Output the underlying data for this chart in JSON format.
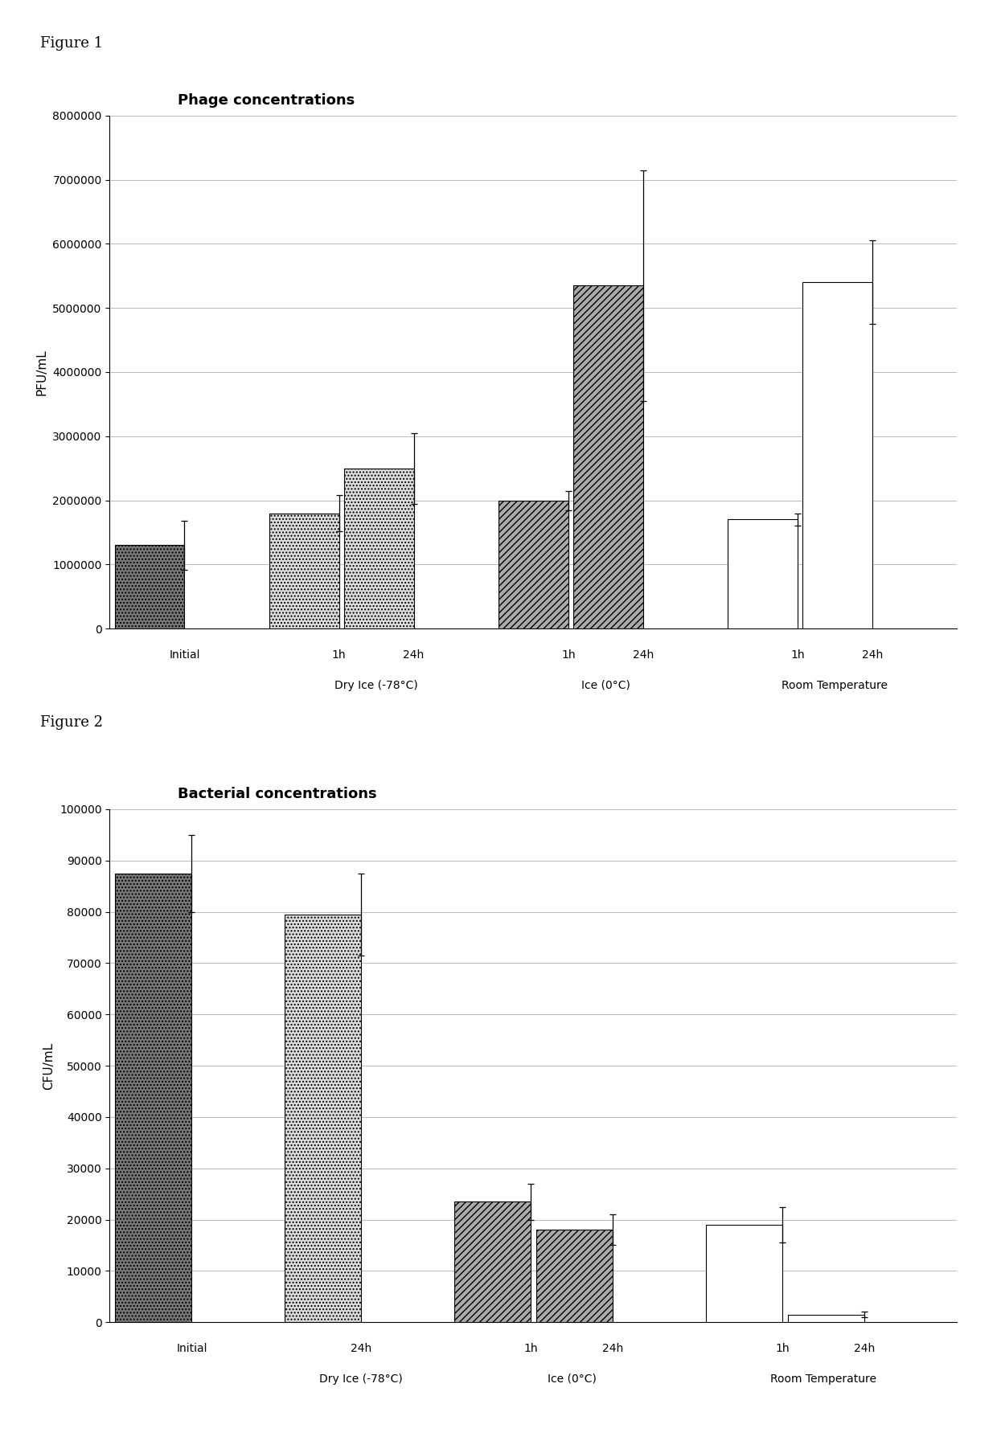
{
  "fig1": {
    "title": "Phage concentrations",
    "ylabel": "PFU/mL",
    "ylim": [
      0,
      8000000
    ],
    "yticks": [
      0,
      1000000,
      2000000,
      3000000,
      4000000,
      5000000,
      6000000,
      7000000,
      8000000
    ],
    "bars": [
      {
        "label": "Initial",
        "group": "Initial",
        "value": 1300000,
        "error": 380000,
        "style": "dark_dot"
      },
      {
        "label": "1h",
        "group": "Dry Ice (-78°C)",
        "value": 1800000,
        "error": 280000,
        "style": "light_dot"
      },
      {
        "label": "24h",
        "group": "Dry Ice (-78°C)",
        "value": 2500000,
        "error": 550000,
        "style": "light_dot"
      },
      {
        "label": "1h",
        "group": "Ice (0°C)",
        "value": 2000000,
        "error": 150000,
        "style": "hatch"
      },
      {
        "label": "24h",
        "group": "Ice (0°C)",
        "value": 5350000,
        "error": 1800000,
        "style": "hatch"
      },
      {
        "label": "1h",
        "group": "Room Temperature",
        "value": 1700000,
        "error": 100000,
        "style": "white"
      },
      {
        "label": "24h",
        "group": "Room Temperature",
        "value": 5400000,
        "error": 650000,
        "style": "white"
      }
    ],
    "group_labels": [
      "Initial",
      "Dry Ice (-78°C)",
      "Ice (0°C)",
      "Room Temperature"
    ]
  },
  "fig2": {
    "title": "Bacterial concentrations",
    "ylabel": "CFU/mL",
    "ylim": [
      0,
      100000
    ],
    "yticks": [
      0,
      10000,
      20000,
      30000,
      40000,
      50000,
      60000,
      70000,
      80000,
      90000,
      100000
    ],
    "bars": [
      {
        "label": "Initial",
        "group": "Initial",
        "value": 87500,
        "error": 7500,
        "style": "dark_dot"
      },
      {
        "label": "24h",
        "group": "Dry Ice (-78°C)",
        "value": 79500,
        "error": 8000,
        "style": "light_dot"
      },
      {
        "label": "1h",
        "group": "Ice (0°C)",
        "value": 23500,
        "error": 3500,
        "style": "hatch"
      },
      {
        "label": "24h",
        "group": "Ice (0°C)",
        "value": 18000,
        "error": 3000,
        "style": "hatch"
      },
      {
        "label": "1h",
        "group": "Room Temperature",
        "value": 19000,
        "error": 3500,
        "style": "white"
      },
      {
        "label": "24h",
        "group": "Room Temperature",
        "value": 1500,
        "error": 500,
        "style": "white"
      }
    ],
    "group_labels": [
      "Initial",
      "Dry Ice (-78°C)",
      "Ice (0°C)",
      "Room Temperature"
    ]
  },
  "figure_label_fontsize": 13,
  "title_fontsize": 13,
  "axis_fontsize": 11,
  "tick_fontsize": 10,
  "background_color": "#ffffff",
  "error_color": "#000000"
}
